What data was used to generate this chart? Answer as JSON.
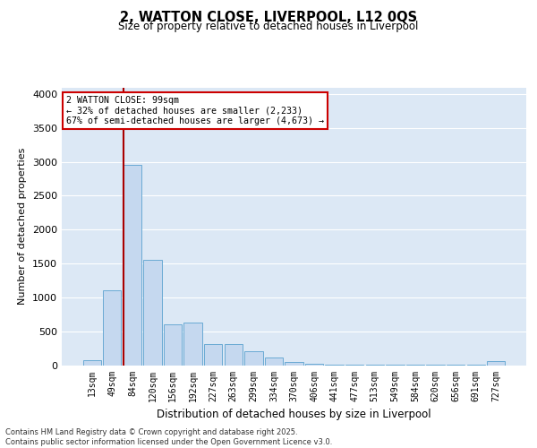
{
  "title_line1": "2, WATTON CLOSE, LIVERPOOL, L12 0QS",
  "title_line2": "Size of property relative to detached houses in Liverpool",
  "xlabel": "Distribution of detached houses by size in Liverpool",
  "ylabel": "Number of detached properties",
  "categories": [
    "13sqm",
    "49sqm",
    "84sqm",
    "120sqm",
    "156sqm",
    "192sqm",
    "227sqm",
    "263sqm",
    "299sqm",
    "334sqm",
    "370sqm",
    "406sqm",
    "441sqm",
    "477sqm",
    "513sqm",
    "549sqm",
    "584sqm",
    "620sqm",
    "656sqm",
    "691sqm",
    "727sqm"
  ],
  "values": [
    75,
    1100,
    2950,
    1550,
    600,
    625,
    315,
    310,
    200,
    110,
    50,
    15,
    10,
    5,
    5,
    5,
    5,
    5,
    5,
    5,
    55
  ],
  "bar_color": "#c5d8ef",
  "bar_edgecolor": "#6aaad4",
  "bg_color": "#dce8f5",
  "grid_color": "#ffffff",
  "vline_color": "#aa0000",
  "annotation_text": "2 WATTON CLOSE: 99sqm\n← 32% of detached houses are smaller (2,233)\n67% of semi-detached houses are larger (4,673) →",
  "annotation_box_edgecolor": "#cc0000",
  "footer": "Contains HM Land Registry data © Crown copyright and database right 2025.\nContains public sector information licensed under the Open Government Licence v3.0.",
  "ylim": [
    0,
    4100
  ],
  "yticks": [
    0,
    500,
    1000,
    1500,
    2000,
    2500,
    3000,
    3500,
    4000
  ]
}
